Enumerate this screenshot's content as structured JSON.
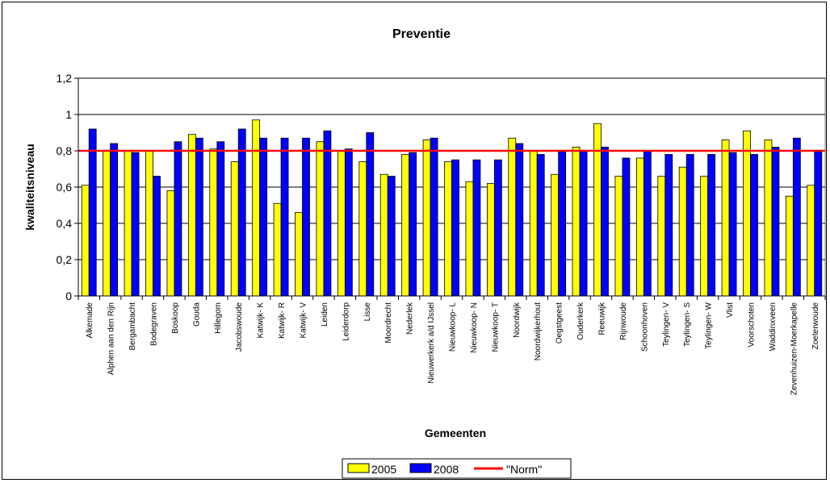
{
  "chart_data": {
    "type": "bar",
    "title": "Preventie",
    "xlabel": "Gemeenten",
    "ylabel": "kwaliteitsniveau",
    "ylim": [
      0,
      1.2
    ],
    "yticks": [
      "0",
      "0,2",
      "0,4",
      "0,6",
      "0,8",
      "1",
      "1,2"
    ],
    "grid": true,
    "legend_position": "bottom",
    "categories": [
      "Alkemade",
      "Alphen aan den Rijn",
      "Bergambacht",
      "Bodegraven",
      "Boskoop",
      "Gouda",
      "Hillegom",
      "Jacobswoude",
      "Katwijk- K",
      "Katwijk- R",
      "Katwijk- V",
      "Leiden",
      "Leiderdorp",
      "Lisse",
      "Moordrecht",
      "Nederlek",
      "Nieuwerkerk a/d IJssel",
      "Nieuwkoop- L",
      "Nieuwkoop- N",
      "Nieuwkoop- T",
      "Noordwijk",
      "Noordwijkerhout",
      "Oegstgeest",
      "Ouderkerk",
      "Reeuwijk",
      "Rijnwoude",
      "Schoonhoven",
      "Teylingen- V",
      "Teylingen- S",
      "Teylingen- W",
      "Vlist",
      "Voorschoten",
      "Waddinxveen",
      "Zevenhuizen-Moerkapelle",
      "Zoeterwoude"
    ],
    "series": [
      {
        "name": "2005",
        "color": "#ffff00",
        "values": [
          0.61,
          0.8,
          0.8,
          0.8,
          0.58,
          0.89,
          0.81,
          0.74,
          0.97,
          0.51,
          0.46,
          0.85,
          0.8,
          0.74,
          0.67,
          0.78,
          0.86,
          0.74,
          0.63,
          0.62,
          0.87,
          0.8,
          0.67,
          0.82,
          0.95,
          0.66,
          0.76,
          0.66,
          0.71,
          0.66,
          0.86,
          0.91,
          0.86,
          0.55,
          0.61
        ]
      },
      {
        "name": "2008",
        "color": "#0000ff",
        "values": [
          0.92,
          0.84,
          0.79,
          0.66,
          0.85,
          0.87,
          0.85,
          0.92,
          0.87,
          0.87,
          0.87,
          0.91,
          0.81,
          0.9,
          0.66,
          0.79,
          0.87,
          0.75,
          0.75,
          0.75,
          0.84,
          0.78,
          0.8,
          0.8,
          0.82,
          0.76,
          0.8,
          0.78,
          0.78,
          0.78,
          0.79,
          0.78,
          0.82,
          0.87,
          0.8
        ]
      }
    ],
    "reference_line": {
      "name": "\"Norm\"",
      "value": 0.8,
      "color": "#ff0000"
    }
  }
}
